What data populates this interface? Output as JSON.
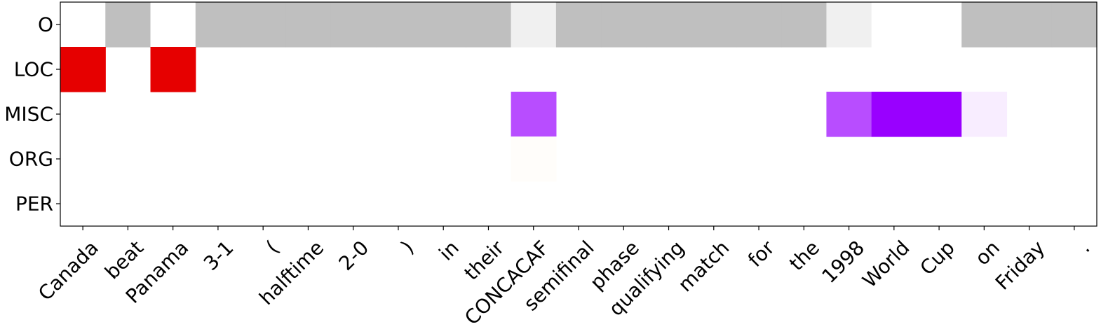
{
  "chart_data": {
    "type": "heatmap",
    "title": "",
    "xlabel": "",
    "ylabel": "",
    "rows": [
      "O",
      "LOC",
      "MISC",
      "ORG",
      "PER"
    ],
    "columns": [
      "Canada",
      "beat",
      "Panama",
      "3-1",
      "(",
      "halftime",
      "2-0",
      ")",
      "in",
      "their",
      "CONCACAF",
      "semifinal",
      "phase",
      "qualifying",
      "match",
      "for",
      "the",
      "1998",
      "World",
      "Cup",
      "on",
      "Friday",
      "."
    ],
    "cells": [
      {
        "row": "O",
        "col": "Canada",
        "value": 0.0
      },
      {
        "row": "O",
        "col": "beat",
        "value": 0.25
      },
      {
        "row": "O",
        "col": "Panama",
        "value": 0.0
      },
      {
        "row": "O",
        "col": "3-1",
        "value": 0.25
      },
      {
        "row": "O",
        "col": "(",
        "value": 0.25
      },
      {
        "row": "O",
        "col": "halftime",
        "value": 0.25
      },
      {
        "row": "O",
        "col": "2-0",
        "value": 0.25
      },
      {
        "row": "O",
        "col": ")",
        "value": 0.25
      },
      {
        "row": "O",
        "col": "in",
        "value": 0.25
      },
      {
        "row": "O",
        "col": "their",
        "value": 0.25
      },
      {
        "row": "O",
        "col": "CONCACAF",
        "value": 0.06
      },
      {
        "row": "O",
        "col": "semifinal",
        "value": 0.25
      },
      {
        "row": "O",
        "col": "phase",
        "value": 0.25
      },
      {
        "row": "O",
        "col": "qualifying",
        "value": 0.25
      },
      {
        "row": "O",
        "col": "match",
        "value": 0.25
      },
      {
        "row": "O",
        "col": "for",
        "value": 0.25
      },
      {
        "row": "O",
        "col": "the",
        "value": 0.25
      },
      {
        "row": "O",
        "col": "1998",
        "value": 0.06
      },
      {
        "row": "O",
        "col": "World",
        "value": 0.0
      },
      {
        "row": "O",
        "col": "Cup",
        "value": 0.0
      },
      {
        "row": "O",
        "col": "on",
        "value": 0.25
      },
      {
        "row": "O",
        "col": "Friday",
        "value": 0.25
      },
      {
        "row": "O",
        "col": ".",
        "value": 0.25
      },
      {
        "row": "LOC",
        "col": "Canada",
        "value": 1.0
      },
      {
        "row": "LOC",
        "col": "Panama",
        "value": 1.0
      },
      {
        "row": "MISC",
        "col": "CONCACAF",
        "value": 0.7
      },
      {
        "row": "MISC",
        "col": "1998",
        "value": 0.7
      },
      {
        "row": "MISC",
        "col": "World",
        "value": 1.0
      },
      {
        "row": "MISC",
        "col": "Cup",
        "value": 1.0
      },
      {
        "row": "MISC",
        "col": "on",
        "value": 0.07
      },
      {
        "row": "ORG",
        "col": "CONCACAF",
        "value": 0.02
      }
    ],
    "row_colors": {
      "O": "#000000",
      "LOC": "#e60000",
      "MISC": "#9900ff",
      "ORG": "#ff9900",
      "PER": "#0066ff"
    },
    "grid": false,
    "legend": "none"
  }
}
